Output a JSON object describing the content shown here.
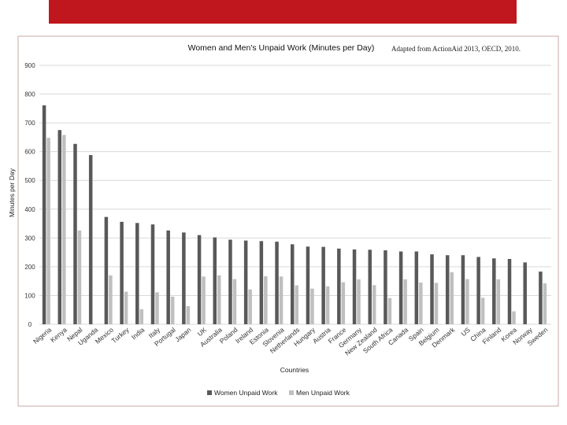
{
  "source_note": "Adapted from ActionAid 2013, OECD, 2010.",
  "colors": {
    "banner": "#c0161d",
    "women": "#595959",
    "men": "#bfbfbf",
    "grid": "#d9d9d9",
    "frame": "#c9a9a9"
  },
  "chart_data": {
    "type": "bar",
    "title": "Women and Men's Unpaid Work (Minutes per Day)",
    "xlabel": "Countries",
    "ylabel": "Minutes per Day",
    "ylim": [
      0,
      900
    ],
    "yticks": [
      0,
      100,
      200,
      300,
      400,
      500,
      600,
      700,
      800,
      900
    ],
    "grid": true,
    "legend": "bottom",
    "categories": [
      "Nigeria",
      "Kenya",
      "Nepal",
      "Uganda",
      "Mexico",
      "Turkey",
      "India",
      "Italy",
      "Portugal",
      "Japan",
      "UK",
      "Australia",
      "Poland",
      "Ireland",
      "Estonia",
      "Slovenia",
      "Netherlands",
      "Hungary",
      "Austria",
      "France",
      "Germany",
      "New Zealand",
      "South Africa",
      "Canada",
      "Spain",
      "Belgium",
      "Denmark",
      "US",
      "China",
      "Finland",
      "Korea",
      "Norway",
      "Sweden"
    ],
    "series": [
      {
        "name": "Women Unpaid Work",
        "values": [
          761,
          675,
          627,
          588,
          373,
          356,
          352,
          347,
          326,
          319,
          310,
          302,
          294,
          291,
          289,
          287,
          278,
          270,
          269,
          263,
          260,
          259,
          257,
          253,
          253,
          243,
          240,
          240,
          234,
          229,
          227,
          215,
          183
        ]
      },
      {
        "name": "Men Unpaid Work",
        "values": [
          648,
          658,
          326,
          0,
          170,
          113,
          52,
          111,
          96,
          63,
          166,
          170,
          157,
          121,
          167,
          166,
          135,
          124,
          132,
          146,
          156,
          136,
          91,
          156,
          145,
          144,
          181,
          157,
          92,
          156,
          45,
          0,
          142
        ]
      }
    ]
  }
}
